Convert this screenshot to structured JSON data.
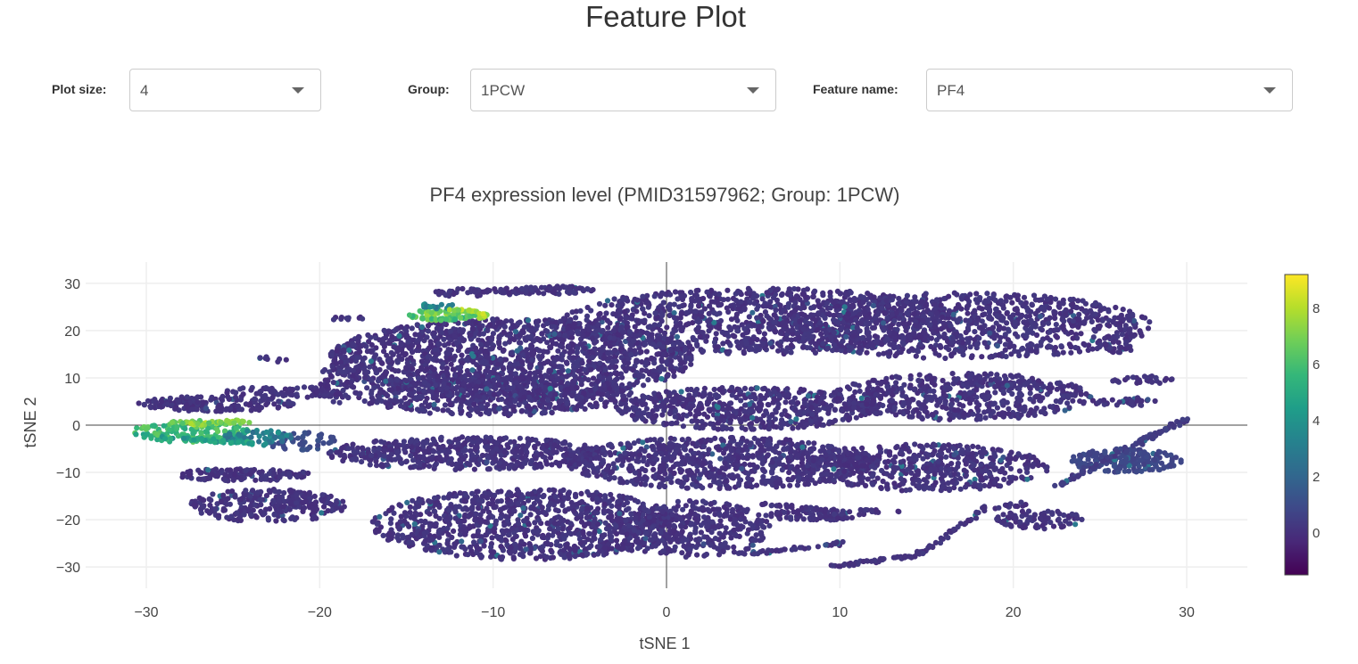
{
  "page": {
    "title": "Feature Plot"
  },
  "controls": {
    "plot_size": {
      "label": "Plot size:",
      "value": "4"
    },
    "group": {
      "label": "Group:",
      "value": "1PCW"
    },
    "feature": {
      "label": "Feature name:",
      "value": "PF4"
    }
  },
  "colors": {
    "viridis": [
      "#440154",
      "#482878",
      "#3e4989",
      "#31688e",
      "#26828e",
      "#1f9e89",
      "#35b779",
      "#6ece58",
      "#b5de2b",
      "#fde725"
    ],
    "axis_zero_line": "#444444",
    "grid": "#eeeeee"
  },
  "chart_data": {
    "type": "scatter",
    "title": "PF4 expression level (PMID31597962; Group: 1PCW)",
    "xlabel": "tSNE 1",
    "ylabel": "tSNE 2",
    "xlim": [
      -33.5,
      33.5
    ],
    "ylim": [
      -34.5,
      34.5
    ],
    "xticks": [
      -30,
      -20,
      -10,
      0,
      10,
      20,
      30
    ],
    "yticks": [
      -30,
      -20,
      -10,
      0,
      10,
      20,
      30
    ],
    "colorbar": {
      "min": -1.5,
      "max": 9.2,
      "ticks": [
        0,
        2,
        4,
        6,
        8
      ],
      "colorscale": "viridis"
    },
    "grid": true,
    "clusters": [
      {
        "cx": -9,
        "cy": 14,
        "rx": 10.5,
        "ry": 8.5,
        "n": 1500,
        "expr": 0.1
      },
      {
        "cx": 5.5,
        "cy": 22,
        "rx": 11.5,
        "ry": 7,
        "n": 1000,
        "expr": 0.1
      },
      {
        "cx": 17,
        "cy": 21,
        "rx": 11,
        "ry": 7,
        "n": 900,
        "expr": 0.1
      },
      {
        "cx": 4.5,
        "cy": 3.5,
        "rx": 7.5,
        "ry": 4.5,
        "n": 550,
        "expr": 0.1
      },
      {
        "cx": 17,
        "cy": 6,
        "rx": 7.5,
        "ry": 5,
        "n": 550,
        "expr": 0.1
      },
      {
        "cx": -10,
        "cy": 6.5,
        "rx": 8,
        "ry": 4.5,
        "n": 550,
        "expr": 0.1
      },
      {
        "cx": -11.5,
        "cy": -6,
        "rx": 8,
        "ry": 3.5,
        "n": 500,
        "expr": 0.1
      },
      {
        "cx": 3,
        "cy": -8,
        "rx": 9,
        "ry": 5.5,
        "n": 800,
        "expr": 0.1
      },
      {
        "cx": 15,
        "cy": -9,
        "rx": 7,
        "ry": 5,
        "n": 500,
        "expr": 0.1
      },
      {
        "cx": -8,
        "cy": -21,
        "rx": 9,
        "ry": 7.5,
        "n": 1000,
        "expr": 0.1
      },
      {
        "cx": 1.5,
        "cy": -22,
        "rx": 4.5,
        "ry": 6,
        "n": 350,
        "expr": 0.1
      },
      {
        "cx": -23,
        "cy": -17,
        "rx": 4.5,
        "ry": 3.5,
        "n": 280,
        "expr": 0.1
      },
      {
        "cx": -24.5,
        "cy": -10.5,
        "rx": 4,
        "ry": 1.3,
        "n": 140,
        "expr": 0.1
      },
      {
        "cx": -26,
        "cy": 4.5,
        "rx": 4.5,
        "ry": 1.6,
        "n": 160,
        "expr": 0.1
      },
      {
        "cx": -22,
        "cy": 7,
        "rx": 3.5,
        "ry": 1.2,
        "n": 70,
        "expr": 0.1
      },
      {
        "cx": -11,
        "cy": 28,
        "rx": 2.5,
        "ry": 0.9,
        "n": 45,
        "expr": 0.1
      },
      {
        "cx": -6.5,
        "cy": 28.5,
        "rx": 2.3,
        "ry": 0.9,
        "n": 45,
        "expr": 0.1
      },
      {
        "cx": 26.5,
        "cy": -7.5,
        "rx": 3.2,
        "ry": 2.5,
        "n": 190,
        "expr": 0.8
      },
      {
        "cx": 27.5,
        "cy": 9.5,
        "rx": 1.8,
        "ry": 0.9,
        "n": 30,
        "expr": 0.1
      },
      {
        "cx": 26.5,
        "cy": 5,
        "rx": 2,
        "ry": 0.9,
        "n": 35,
        "expr": 0.1
      },
      {
        "cx": 26,
        "cy": 16.5,
        "rx": 1.1,
        "ry": 1.4,
        "n": 25,
        "expr": 0.1
      },
      {
        "cx": 21.5,
        "cy": -20,
        "rx": 2.5,
        "ry": 2,
        "n": 90,
        "expr": 0.1
      },
      {
        "cx": 8.5,
        "cy": -19,
        "rx": 3,
        "ry": 1.3,
        "n": 80,
        "expr": 0.1
      },
      {
        "cx": -21,
        "cy": -3.5,
        "rx": 2,
        "ry": 2,
        "n": 50,
        "expr": 1.0
      },
      {
        "cx": -19,
        "cy": 9,
        "rx": 1,
        "ry": 4.5,
        "n": 60,
        "expr": 0.1
      },
      {
        "cx": -27.5,
        "cy": -1.5,
        "rx": 3.5,
        "ry": 2.2,
        "n": 130,
        "expr": 5.8
      },
      {
        "cx": -23.5,
        "cy": -2.5,
        "rx": 2,
        "ry": 1.4,
        "n": 55,
        "expr": 3.2
      },
      {
        "cx": -13,
        "cy": 23.3,
        "rx": 1.8,
        "ry": 1.2,
        "n": 45,
        "expr": 6.7
      },
      {
        "cx": -13.5,
        "cy": 25.2,
        "rx": 1.5,
        "ry": 0.6,
        "n": 18,
        "expr": 3.2
      },
      {
        "cx": -26.5,
        "cy": 0.4,
        "rx": 1.3,
        "ry": 0.5,
        "n": 22,
        "expr": 7.6
      }
    ],
    "strands": [
      {
        "x1": 22.5,
        "y1": -13,
        "x2": 30,
        "y2": 1.5,
        "n": 90,
        "expr": 0.4
      },
      {
        "x1": 9.5,
        "y1": -30,
        "x2": 14.5,
        "y2": -27.5,
        "n": 45,
        "expr": 0.1
      },
      {
        "x1": 14.5,
        "y1": -27.5,
        "x2": 18.5,
        "y2": -17.5,
        "n": 40,
        "expr": 0.1
      },
      {
        "x1": 18.5,
        "y1": -17.5,
        "x2": 21,
        "y2": -16.5,
        "n": 15,
        "expr": 0.1
      },
      {
        "x1": 4,
        "y1": -27.5,
        "x2": 10,
        "y2": -25,
        "n": 40,
        "expr": 0.1
      },
      {
        "x1": 5.5,
        "y1": -16.5,
        "x2": 9,
        "y2": -18,
        "n": 25,
        "expr": 0.1
      },
      {
        "x1": 11,
        "y1": -18,
        "x2": 13.5,
        "y2": -18.5,
        "n": 12,
        "expr": 0.1
      },
      {
        "x1": -30.5,
        "y1": -2.2,
        "x2": -23,
        "y2": -4,
        "n": 40,
        "expr": 4.5
      },
      {
        "x1": -28.5,
        "y1": 0.5,
        "x2": -24,
        "y2": 0.8,
        "n": 35,
        "expr": 7.0
      },
      {
        "x1": -11,
        "y1": 28.5,
        "x2": -4.5,
        "y2": 29,
        "n": 20,
        "expr": 0.1
      },
      {
        "x1": -19.5,
        "y1": 22.5,
        "x2": -17.5,
        "y2": 22.5,
        "n": 10,
        "expr": 0.1
      },
      {
        "x1": -23.5,
        "y1": 14.5,
        "x2": -22,
        "y2": 13.5,
        "n": 8,
        "expr": 0.1
      }
    ],
    "arcs": [
      {
        "cx": -13,
        "cy": 24,
        "rx": 2,
        "ry": 1.7,
        "a0": 200,
        "a1": 360,
        "n": 45,
        "expr": 6.2
      },
      {
        "cx": -12.5,
        "cy": 23.2,
        "rx": 2,
        "ry": 1.2,
        "a0": -30,
        "a1": 90,
        "n": 30,
        "expr": 7.7
      }
    ],
    "note": "Each point is one cell; its position is its tSNE 1 / tSNE 2 coordinate and its color is the PF4 expression level on the colorbar scale. Points are generated from these cluster summaries estimated from the image."
  }
}
